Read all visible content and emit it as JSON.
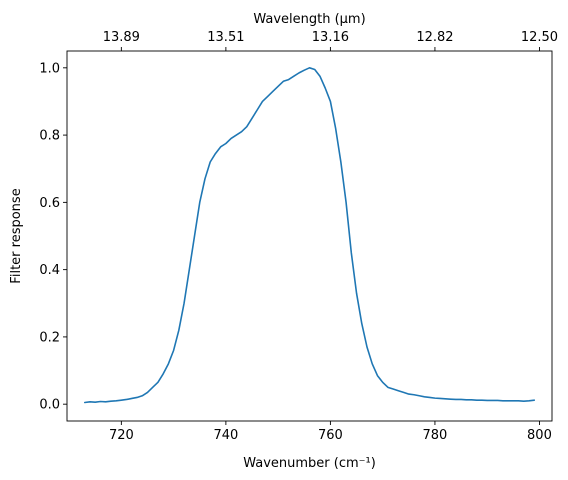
{
  "chart_data": {
    "type": "line",
    "xlabel": "Wavenumber (cm⁻¹)",
    "ylabel": "Filter response",
    "top_xlabel": "Wavelength (μm)",
    "xlim": [
      709.6,
      802.4
    ],
    "ylim": [
      -0.05,
      1.05
    ],
    "x_ticks": [
      720,
      740,
      760,
      780,
      800
    ],
    "y_ticks": [
      0.0,
      0.2,
      0.4,
      0.6,
      0.8,
      1.0
    ],
    "top_ticks": [
      {
        "wavenumber": 720,
        "label": "13.89"
      },
      {
        "wavenumber": 740,
        "label": "13.51"
      },
      {
        "wavenumber": 760,
        "label": "13.16"
      },
      {
        "wavenumber": 780,
        "label": "12.82"
      },
      {
        "wavenumber": 800,
        "label": "12.50"
      }
    ],
    "grid": false,
    "line_color": "#1f77b4",
    "series": [
      {
        "x": [
          713,
          714,
          715,
          716,
          717,
          718,
          719,
          720,
          721,
          722,
          723,
          724,
          725,
          726,
          727,
          728,
          729,
          730,
          731,
          732,
          733,
          734,
          735,
          736,
          737,
          738,
          739,
          740,
          741,
          742,
          743,
          744,
          745,
          746,
          747,
          748,
          749,
          750,
          751,
          752,
          753,
          754,
          755,
          756,
          757,
          758,
          759,
          760,
          761,
          762,
          763,
          764,
          765,
          766,
          767,
          768,
          769,
          770,
          771,
          772,
          773,
          774,
          775,
          776,
          777,
          778,
          779,
          780,
          781,
          782,
          783,
          784,
          785,
          786,
          787,
          788,
          789,
          790,
          791,
          792,
          793,
          794,
          795,
          796,
          797,
          798,
          799
        ],
        "y": [
          0.005,
          0.007,
          0.006,
          0.008,
          0.007,
          0.009,
          0.01,
          0.012,
          0.014,
          0.017,
          0.02,
          0.025,
          0.035,
          0.05,
          0.065,
          0.09,
          0.12,
          0.16,
          0.22,
          0.3,
          0.4,
          0.5,
          0.6,
          0.67,
          0.72,
          0.745,
          0.765,
          0.775,
          0.79,
          0.8,
          0.81,
          0.825,
          0.85,
          0.875,
          0.9,
          0.915,
          0.93,
          0.945,
          0.96,
          0.965,
          0.975,
          0.985,
          0.993,
          1.0,
          0.995,
          0.975,
          0.94,
          0.9,
          0.82,
          0.72,
          0.6,
          0.45,
          0.33,
          0.24,
          0.17,
          0.12,
          0.085,
          0.065,
          0.05,
          0.045,
          0.04,
          0.035,
          0.03,
          0.028,
          0.025,
          0.022,
          0.02,
          0.018,
          0.017,
          0.016,
          0.015,
          0.014,
          0.014,
          0.013,
          0.013,
          0.012,
          0.012,
          0.011,
          0.011,
          0.011,
          0.01,
          0.01,
          0.01,
          0.01,
          0.009,
          0.01,
          0.012
        ]
      }
    ]
  }
}
